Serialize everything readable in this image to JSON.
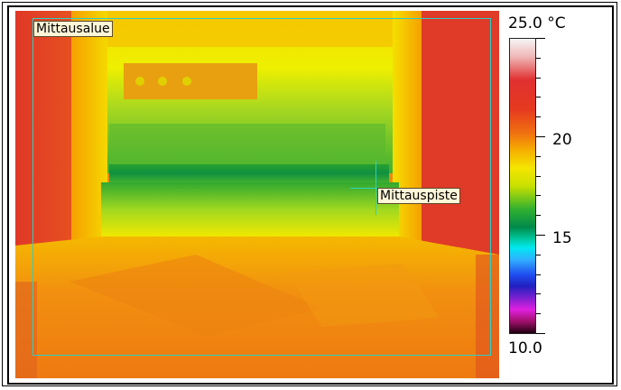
{
  "measurement_area": {
    "label": "Mittausalue"
  },
  "measurement_spot": {
    "label": "Mittauspiste"
  },
  "scale": {
    "max_label": "25.0 °C",
    "min_label": "10.0",
    "ticks": [
      {
        "label": "20",
        "value": 20
      },
      {
        "label": "15",
        "value": 15
      }
    ],
    "min_value": 10.0,
    "max_value": 25.0
  },
  "colors": {
    "area_outline": "#2ad0c8",
    "hot": "#e63a20",
    "warm": "#f07a10",
    "mid": "#f5e600",
    "cool": "#30b030"
  }
}
